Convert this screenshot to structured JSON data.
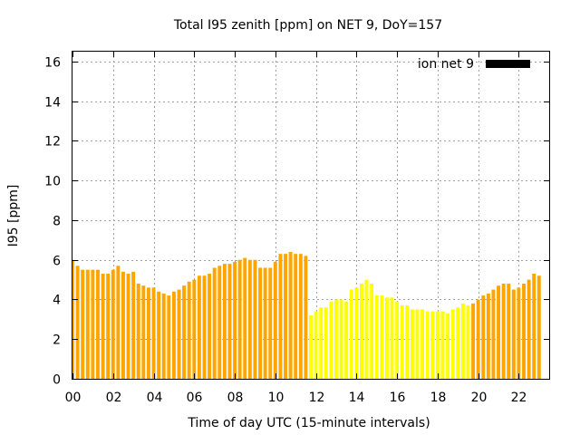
{
  "chart_data": {
    "type": "bar",
    "title": "Total I95 zenith [ppm] on NET 9, DoY=157",
    "xlabel": "Time of day UTC (15-minute intervals)",
    "ylabel": "I95 [ppm]",
    "xlim": [
      0,
      23.5
    ],
    "ylim": [
      0,
      16.5
    ],
    "x_ticks": [
      0,
      2,
      4,
      6,
      8,
      10,
      12,
      14,
      16,
      18,
      20,
      22
    ],
    "x_tick_labels": [
      "00",
      "02",
      "04",
      "06",
      "08",
      "10",
      "12",
      "14",
      "16",
      "18",
      "20",
      "22"
    ],
    "y_ticks": [
      0,
      2,
      4,
      6,
      8,
      10,
      12,
      14,
      16
    ],
    "y_tick_labels": [
      "0",
      "2",
      "4",
      "6",
      "8",
      "10",
      "12",
      "14",
      "16"
    ],
    "grid": true,
    "legend": {
      "label": "ion net 9",
      "position": "top-right",
      "color": "#000000"
    },
    "bar_interval_hours": 0.25,
    "colors": {
      "day": "#ffa500",
      "night": "#ffff00"
    },
    "night_range_hours": [
      11.75,
      19.75
    ],
    "values": [
      6.0,
      5.7,
      5.5,
      5.5,
      5.5,
      5.5,
      5.3,
      5.3,
      5.5,
      5.7,
      5.4,
      5.3,
      5.4,
      4.8,
      4.7,
      4.6,
      4.6,
      4.4,
      4.3,
      4.2,
      4.4,
      4.5,
      4.7,
      4.9,
      5.0,
      5.2,
      5.2,
      5.3,
      5.6,
      5.7,
      5.8,
      5.8,
      5.9,
      6.0,
      6.1,
      6.0,
      6.0,
      5.6,
      5.6,
      5.6,
      5.9,
      6.3,
      6.3,
      6.4,
      6.3,
      6.3,
      6.2,
      3.2,
      3.4,
      3.6,
      3.6,
      3.9,
      4.0,
      4.0,
      3.9,
      4.5,
      4.6,
      4.8,
      5.0,
      4.8,
      4.2,
      4.2,
      4.1,
      4.1,
      3.9,
      3.7,
      3.7,
      3.5,
      3.5,
      3.5,
      3.4,
      3.4,
      3.4,
      3.4,
      3.3,
      3.5,
      3.6,
      3.8,
      3.7,
      3.8,
      4.0,
      4.2,
      4.3,
      4.5,
      4.7,
      4.8,
      4.8,
      4.5,
      4.6,
      4.8,
      5.0,
      5.3,
      5.2
    ]
  }
}
